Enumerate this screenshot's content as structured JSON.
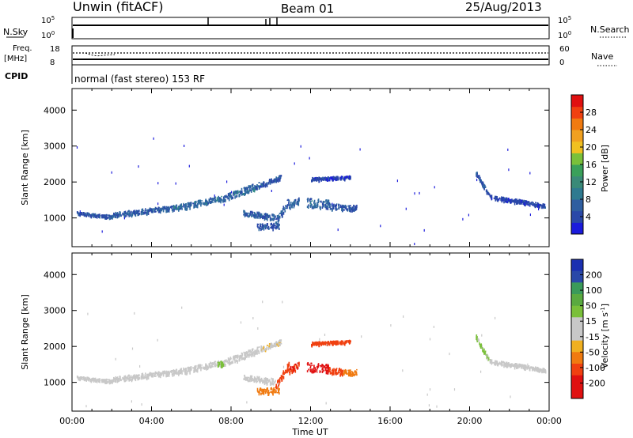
{
  "header": {
    "radar": "Unwin (fitACF)",
    "beam": "Beam 01",
    "date": "25/Aug/2013"
  },
  "top_panels": {
    "nsky_label": "N.Sky",
    "nsky_top": "10^5",
    "nsky_bottom": "10^0",
    "nsearch_top": "10^5",
    "nsearch_bottom": "10^0",
    "nsearch_label": "N.Search",
    "freq_label_1": "Freq.",
    "freq_label_2": "[MHz]",
    "freq_top": "18",
    "freq_bottom": "8",
    "nave_top": "60",
    "nave_bottom": "0",
    "nave_label": "Nave",
    "cpid_label": "CPID",
    "cpid_text": "normal (fast stereo) 153 RF"
  },
  "colors": {
    "power_scale": [
      "#1b1bdc",
      "#2a48a8",
      "#2f6aa0",
      "#2f8a82",
      "#3aa05a",
      "#7ac03a",
      "#f0c020",
      "#f0a020",
      "#f07a10",
      "#f04010",
      "#e01010"
    ],
    "velocity_scale": [
      "#e01010",
      "#f04010",
      "#f07a10",
      "#f0a020",
      "#f0c020",
      "#c8c8c8",
      "#c8c8c8",
      "#7ac03a",
      "#3aa05a",
      "#2f6aa0",
      "#2a48a8",
      "#1b30b0"
    ]
  },
  "chart_data": [
    {
      "type": "heatmap",
      "title": "Power",
      "ylabel": "Slant Range [km]",
      "x_ticks": [
        "00:00",
        "04:00",
        "08:00",
        "12:00",
        "16:00",
        "20:00",
        "00:00"
      ],
      "x_range_hours": [
        0,
        24
      ],
      "y_ticks": [
        1000,
        2000,
        3000,
        4000
      ],
      "ylim": [
        200,
        4600
      ],
      "colorbar": {
        "label": "Power [dB]",
        "ticks": [
          "4",
          "8",
          "12",
          "16",
          "20",
          "24",
          "28"
        ],
        "range": [
          0,
          32
        ]
      },
      "segments": [
        {
          "t0": 0.2,
          "t1": 2.0,
          "r0": 1150,
          "r1": 1050,
          "thickness": 80,
          "value": 5
        },
        {
          "t0": 2.0,
          "t1": 5.0,
          "r0": 1100,
          "r1": 1300,
          "thickness": 130,
          "value": 6
        },
        {
          "t0": 5.0,
          "t1": 7.8,
          "r0": 1280,
          "r1": 1600,
          "thickness": 150,
          "value": 7
        },
        {
          "t0": 7.8,
          "t1": 9.5,
          "r0": 1600,
          "r1": 1950,
          "thickness": 180,
          "value": 7
        },
        {
          "t0": 9.5,
          "t1": 10.5,
          "r0": 1950,
          "r1": 2150,
          "thickness": 120,
          "value": 5
        },
        {
          "t0": 8.6,
          "t1": 10.2,
          "r0": 1150,
          "r1": 1050,
          "thickness": 150,
          "value": 6
        },
        {
          "t0": 9.3,
          "t1": 10.4,
          "r0": 780,
          "r1": 800,
          "thickness": 150,
          "value": 5
        },
        {
          "t0": 10.2,
          "t1": 10.9,
          "r0": 900,
          "r1": 1500,
          "thickness": 200,
          "value": 6
        },
        {
          "t0": 10.9,
          "t1": 11.4,
          "r0": 1350,
          "r1": 1500,
          "thickness": 180,
          "value": 6
        },
        {
          "t0": 11.8,
          "t1": 12.9,
          "r0": 1450,
          "r1": 1400,
          "thickness": 250,
          "value": 7
        },
        {
          "t0": 12.9,
          "t1": 13.6,
          "r0": 1350,
          "r1": 1300,
          "thickness": 200,
          "value": 6
        },
        {
          "t0": 13.6,
          "t1": 14.3,
          "r0": 1300,
          "r1": 1300,
          "thickness": 140,
          "value": 5
        },
        {
          "t0": 12.0,
          "t1": 14.0,
          "r0": 2100,
          "r1": 2150,
          "thickness": 80,
          "value": 4
        },
        {
          "t0": 20.3,
          "t1": 21.0,
          "r0": 2300,
          "r1": 1600,
          "thickness": 120,
          "value": 5
        },
        {
          "t0": 21.0,
          "t1": 22.8,
          "r0": 1600,
          "r1": 1450,
          "thickness": 100,
          "value": 4
        },
        {
          "t0": 22.8,
          "t1": 23.8,
          "r0": 1450,
          "r1": 1350,
          "thickness": 90,
          "value": 4
        }
      ]
    },
    {
      "type": "heatmap",
      "title": "Velocity",
      "ylabel": "Slant Range [km]",
      "xlabel": "Time UT",
      "x_ticks": [
        "00:00",
        "04:00",
        "08:00",
        "12:00",
        "16:00",
        "20:00",
        "00:00"
      ],
      "x_range_hours": [
        0,
        24
      ],
      "y_ticks": [
        1000,
        2000,
        3000,
        4000
      ],
      "ylim": [
        200,
        4600
      ],
      "colorbar": {
        "label": "Velocity [m s^-1]",
        "ticks": [
          "200",
          "100",
          "50",
          "15",
          "-15",
          "-50",
          "-100",
          "-200"
        ],
        "range": [
          -250,
          250
        ]
      },
      "segments": [
        {
          "t0": 0.2,
          "t1": 2.0,
          "r0": 1150,
          "r1": 1050,
          "thickness": 80,
          "value": 0
        },
        {
          "t0": 2.0,
          "t1": 5.0,
          "r0": 1100,
          "r1": 1300,
          "thickness": 130,
          "value": 5
        },
        {
          "t0": 5.0,
          "t1": 7.8,
          "r0": 1280,
          "r1": 1600,
          "thickness": 150,
          "value": 0
        },
        {
          "t0": 7.3,
          "t1": 7.6,
          "r0": 1500,
          "r1": 1550,
          "thickness": 150,
          "value": 30
        },
        {
          "t0": 7.8,
          "t1": 9.5,
          "r0": 1600,
          "r1": 1950,
          "thickness": 180,
          "value": 0
        },
        {
          "t0": 9.5,
          "t1": 10.5,
          "r0": 1950,
          "r1": 2150,
          "thickness": 120,
          "value": -10
        },
        {
          "t0": 8.6,
          "t1": 10.2,
          "r0": 1150,
          "r1": 1050,
          "thickness": 150,
          "value": 0
        },
        {
          "t0": 9.3,
          "t1": 10.4,
          "r0": 780,
          "r1": 800,
          "thickness": 150,
          "value": -80
        },
        {
          "t0": 10.2,
          "t1": 10.9,
          "r0": 900,
          "r1": 1500,
          "thickness": 200,
          "value": -120
        },
        {
          "t0": 10.9,
          "t1": 11.4,
          "r0": 1350,
          "r1": 1500,
          "thickness": 180,
          "value": -200
        },
        {
          "t0": 11.8,
          "t1": 12.9,
          "r0": 1450,
          "r1": 1400,
          "thickness": 250,
          "value": -220
        },
        {
          "t0": 12.9,
          "t1": 13.6,
          "r0": 1350,
          "r1": 1300,
          "thickness": 200,
          "value": -150
        },
        {
          "t0": 13.6,
          "t1": 14.3,
          "r0": 1300,
          "r1": 1300,
          "thickness": 140,
          "value": -60
        },
        {
          "t0": 12.0,
          "t1": 14.0,
          "r0": 2100,
          "r1": 2150,
          "thickness": 80,
          "value": -180
        },
        {
          "t0": 20.3,
          "t1": 21.0,
          "r0": 2300,
          "r1": 1600,
          "thickness": 120,
          "value": 20
        },
        {
          "t0": 21.0,
          "t1": 22.8,
          "r0": 1600,
          "r1": 1450,
          "thickness": 100,
          "value": 0
        },
        {
          "t0": 22.8,
          "t1": 23.8,
          "r0": 1450,
          "r1": 1350,
          "thickness": 90,
          "value": 0
        }
      ]
    }
  ]
}
